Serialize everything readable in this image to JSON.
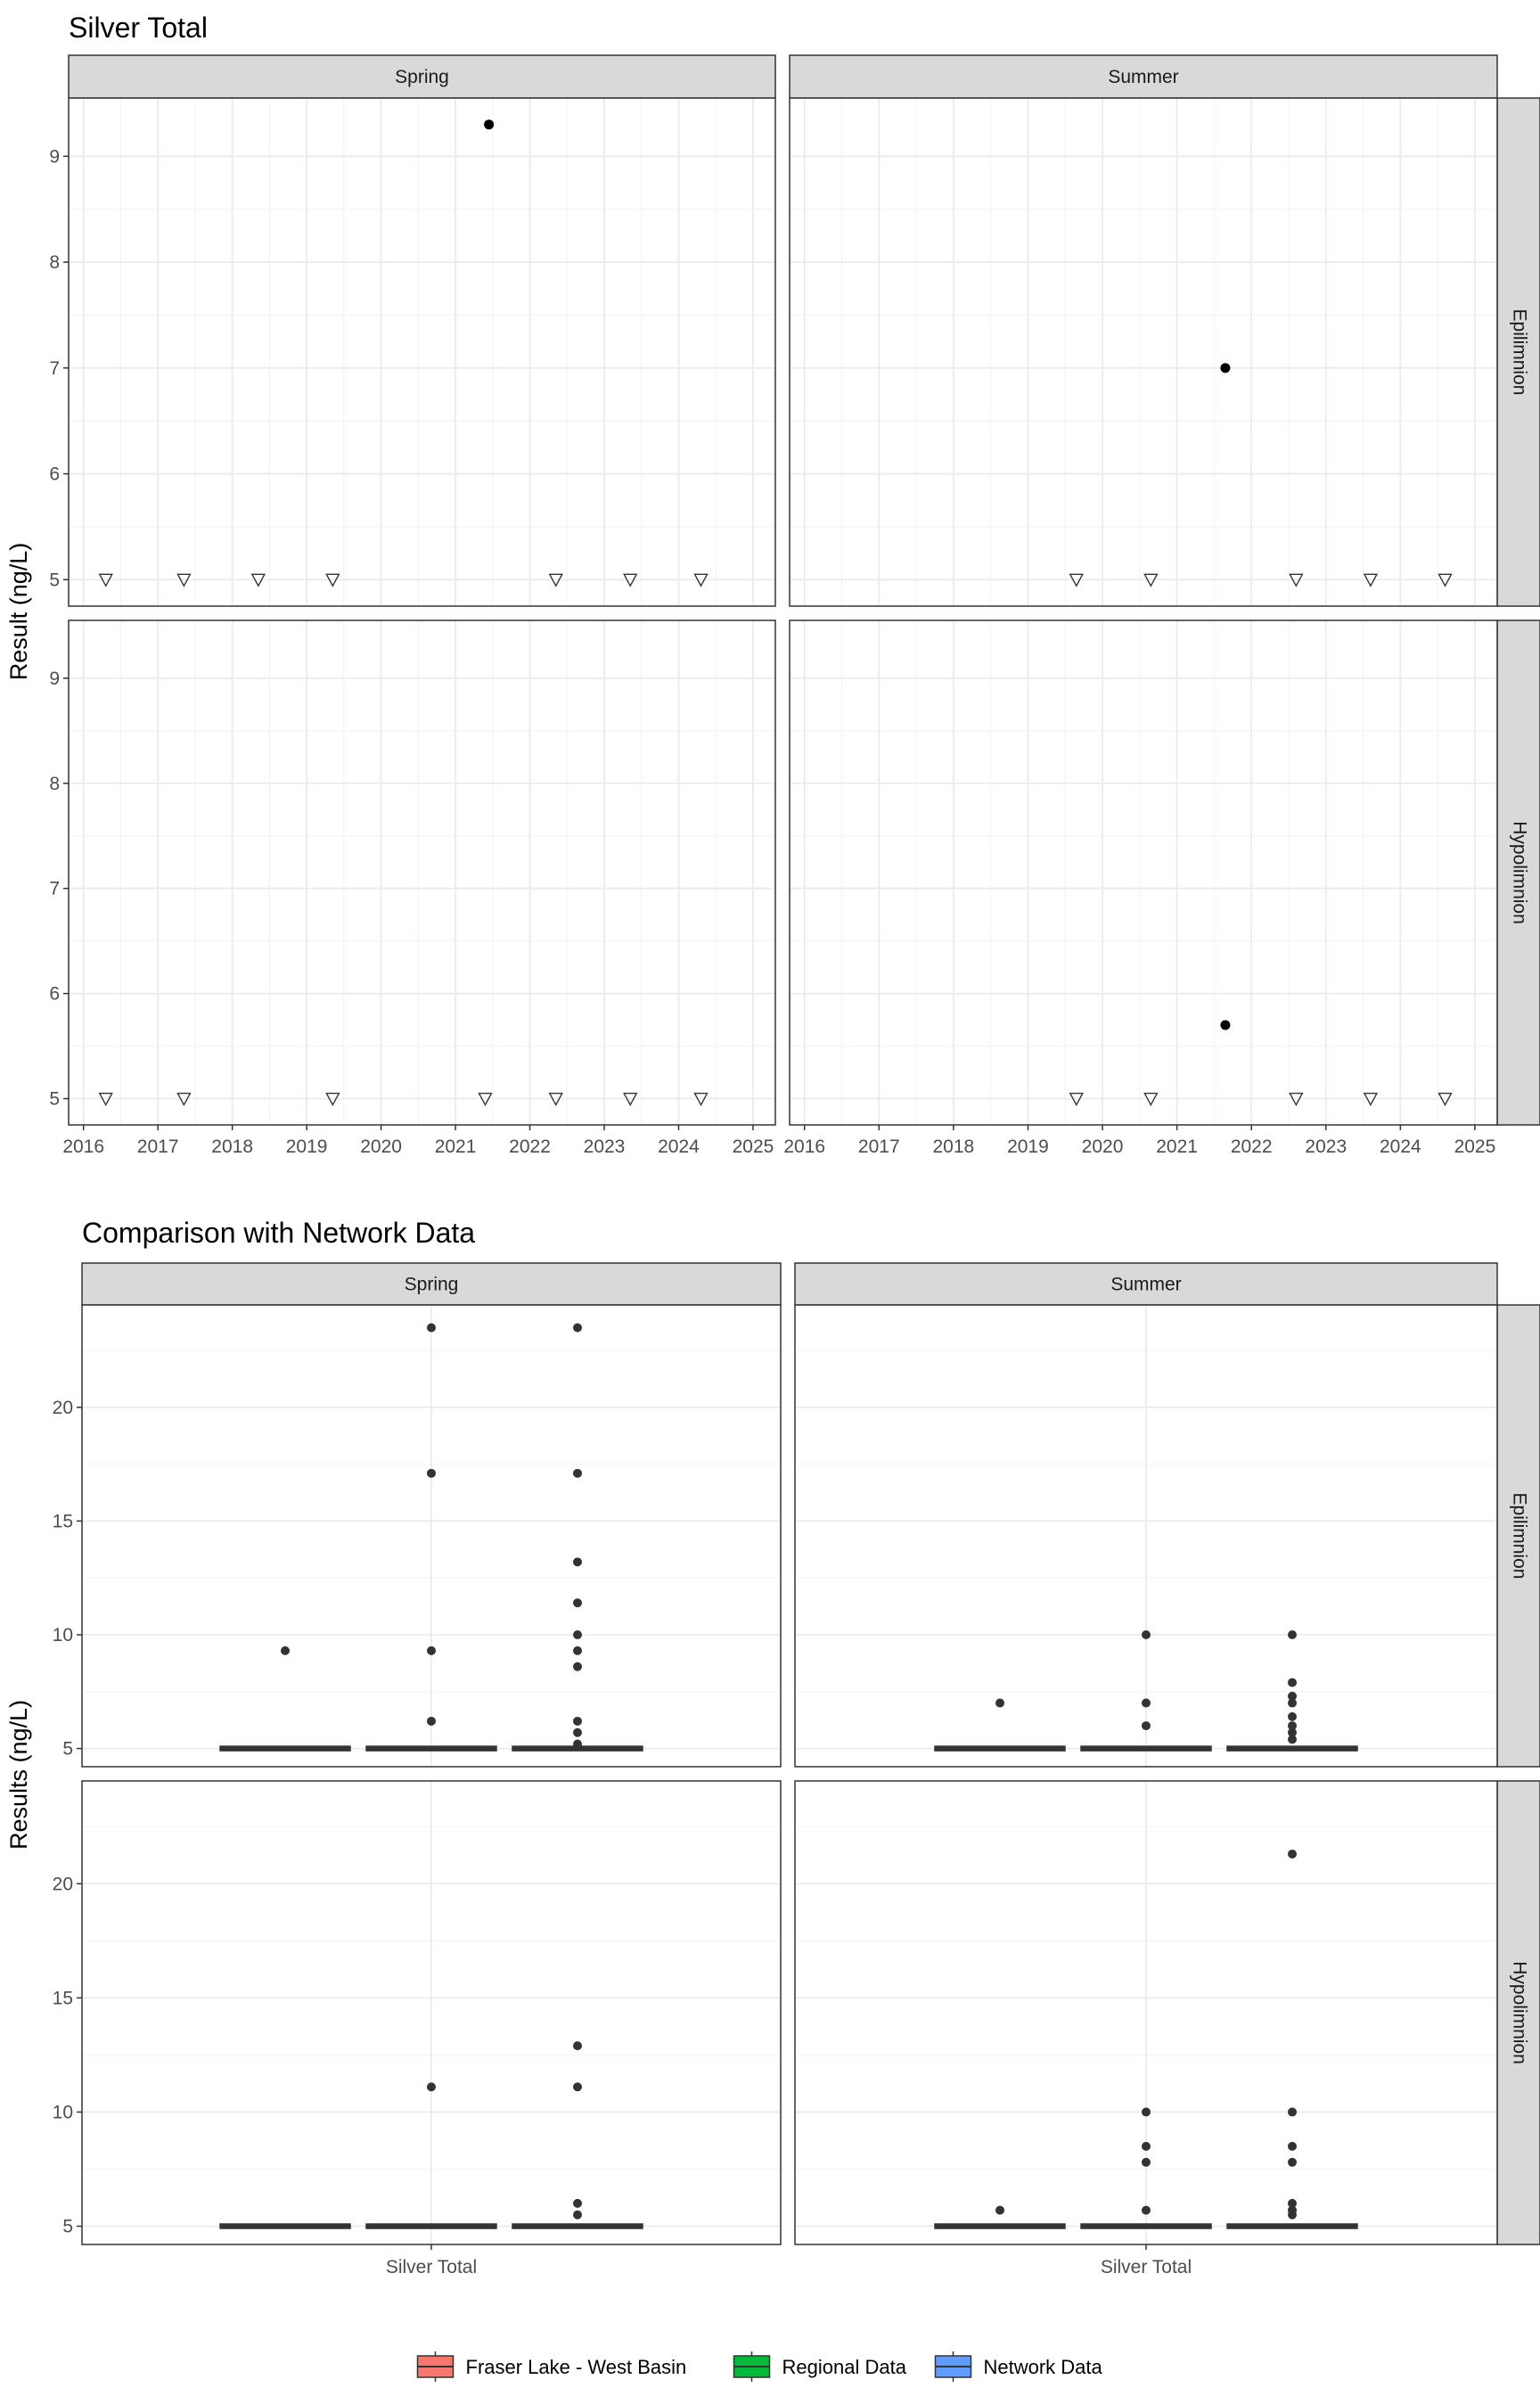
{
  "chart_data": [
    {
      "type": "scatter",
      "title": "Silver Total",
      "ylabel": "Result (ng/L)",
      "xlabel": "",
      "xlim": [
        2015.8,
        2025.3
      ],
      "ylim": [
        4.75,
        9.55
      ],
      "x_ticks": [
        2016,
        2017,
        2018,
        2019,
        2020,
        2021,
        2022,
        2023,
        2024,
        2025
      ],
      "x_tick_labels": [
        "2016",
        "2017",
        "2018",
        "2019",
        "2020",
        "2021",
        "2022",
        "2023",
        "2024",
        "2025"
      ],
      "y_ticks": [
        5,
        6,
        7,
        8,
        9
      ],
      "y_tick_labels": [
        "5",
        "6",
        "7",
        "8",
        "9"
      ],
      "columns": [
        "Spring",
        "Summer"
      ],
      "rows": [
        "Epilimnion",
        "Hypolimnion"
      ],
      "grid": true,
      "panels": [
        {
          "column": "Spring",
          "row": "Epilimnion",
          "detected": [
            {
              "x": 2021.45,
              "y": 9.3
            }
          ],
          "below_detection": [
            {
              "x": 2016.3,
              "y": 5
            },
            {
              "x": 2017.35,
              "y": 5
            },
            {
              "x": 2018.35,
              "y": 5
            },
            {
              "x": 2019.35,
              "y": 5
            },
            {
              "x": 2022.35,
              "y": 5
            },
            {
              "x": 2023.35,
              "y": 5
            },
            {
              "x": 2024.3,
              "y": 5
            }
          ]
        },
        {
          "column": "Summer",
          "row": "Epilimnion",
          "detected": [
            {
              "x": 2021.65,
              "y": 7.0
            }
          ],
          "below_detection": [
            {
              "x": 2019.65,
              "y": 5
            },
            {
              "x": 2020.65,
              "y": 5
            },
            {
              "x": 2022.6,
              "y": 5
            },
            {
              "x": 2023.6,
              "y": 5
            },
            {
              "x": 2024.6,
              "y": 5
            }
          ]
        },
        {
          "column": "Spring",
          "row": "Hypolimnion",
          "detected": [],
          "below_detection": [
            {
              "x": 2016.3,
              "y": 5
            },
            {
              "x": 2017.35,
              "y": 5
            },
            {
              "x": 2019.35,
              "y": 5
            },
            {
              "x": 2021.4,
              "y": 5
            },
            {
              "x": 2022.35,
              "y": 5
            },
            {
              "x": 2023.35,
              "y": 5
            },
            {
              "x": 2024.3,
              "y": 5
            }
          ]
        },
        {
          "column": "Summer",
          "row": "Hypolimnion",
          "detected": [
            {
              "x": 2021.65,
              "y": 5.7
            }
          ],
          "below_detection": [
            {
              "x": 2019.65,
              "y": 5
            },
            {
              "x": 2020.65,
              "y": 5
            },
            {
              "x": 2022.6,
              "y": 5
            },
            {
              "x": 2023.6,
              "y": 5
            },
            {
              "x": 2024.6,
              "y": 5
            }
          ]
        }
      ]
    },
    {
      "type": "box",
      "title": "Comparison with Network Data",
      "ylabel": "Results (ng/L)",
      "xlabel": "",
      "category": "Silver Total",
      "ylim": [
        4.2,
        24.5
      ],
      "y_ticks": [
        5,
        10,
        15,
        20
      ],
      "y_tick_labels": [
        "5",
        "10",
        "15",
        "20"
      ],
      "columns": [
        "Spring",
        "Summer"
      ],
      "rows": [
        "Epilimnion",
        "Hypolimnion"
      ],
      "grid": true,
      "legend_position": "bottom",
      "series": [
        {
          "name": "Fraser Lake - West Basin",
          "color": "#F8766D"
        },
        {
          "name": "Regional Data",
          "color": "#00BA38"
        },
        {
          "name": "Network Data",
          "color": "#619CFF"
        }
      ],
      "panels": [
        {
          "column": "Spring",
          "row": "Epilimnion",
          "boxes": [
            {
              "median": 5,
              "outliers": [
                9.3
              ]
            },
            {
              "median": 5,
              "outliers": [
                6.2,
                9.3,
                17.1,
                23.5
              ]
            },
            {
              "median": 5,
              "outliers": [
                5.2,
                5.7,
                6.2,
                8.6,
                9.3,
                10.0,
                11.4,
                13.2,
                17.1,
                23.5
              ]
            }
          ]
        },
        {
          "column": "Summer",
          "row": "Epilimnion",
          "boxes": [
            {
              "median": 5,
              "outliers": [
                7.0
              ]
            },
            {
              "median": 5,
              "outliers": [
                6.0,
                7.0,
                10.0
              ]
            },
            {
              "median": 5,
              "outliers": [
                5.4,
                5.7,
                6.0,
                6.4,
                7.0,
                7.3,
                7.9,
                10.0
              ]
            }
          ]
        },
        {
          "column": "Spring",
          "row": "Hypolimnion",
          "boxes": [
            {
              "median": 5,
              "outliers": []
            },
            {
              "median": 5,
              "outliers": [
                11.1
              ]
            },
            {
              "median": 5,
              "outliers": [
                5.5,
                6.0,
                11.1,
                12.9
              ]
            }
          ]
        },
        {
          "column": "Summer",
          "row": "Hypolimnion",
          "boxes": [
            {
              "median": 5,
              "outliers": [
                5.7
              ]
            },
            {
              "median": 5,
              "outliers": [
                5.7,
                7.8,
                8.5,
                10.0
              ]
            },
            {
              "median": 5,
              "outliers": [
                5.5,
                5.7,
                6.0,
                7.8,
                8.5,
                10.0,
                21.3
              ]
            }
          ]
        }
      ]
    }
  ]
}
